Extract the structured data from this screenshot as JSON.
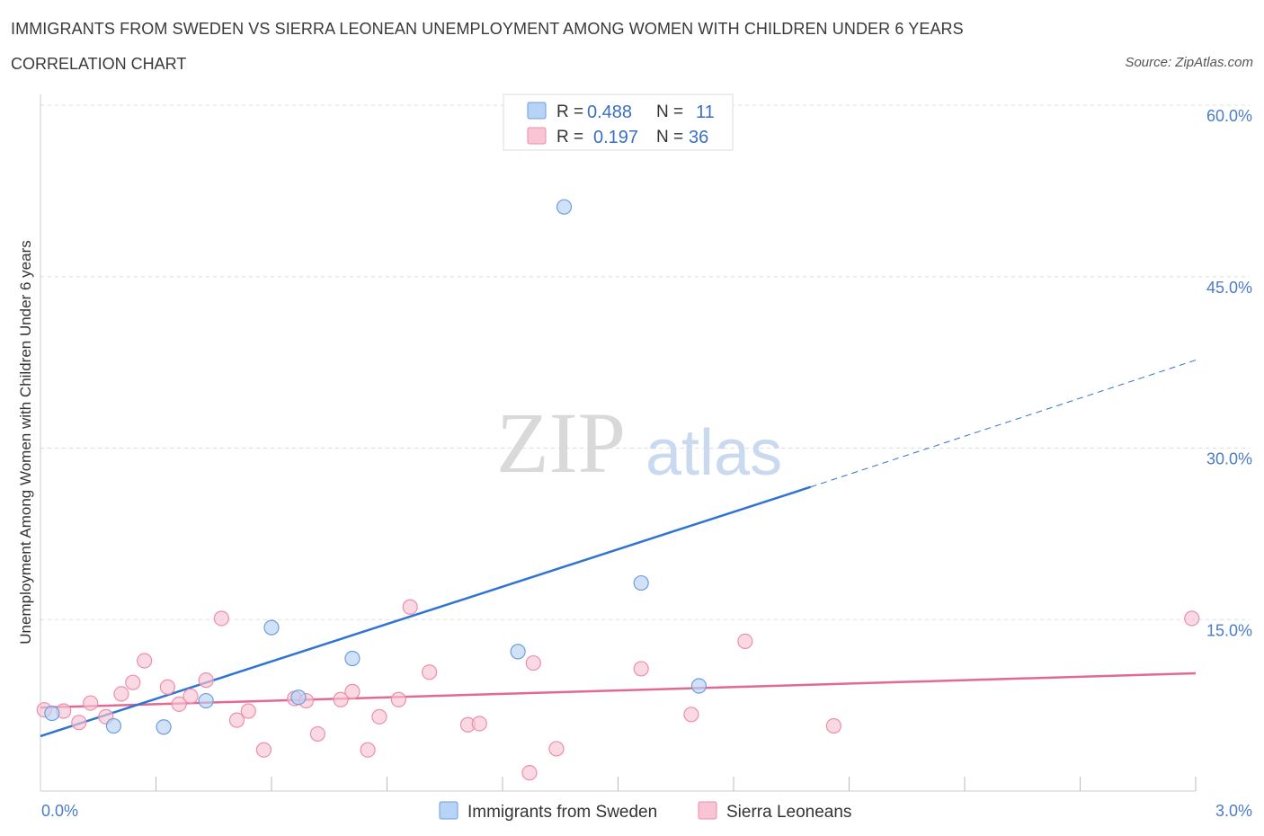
{
  "header": {
    "title": "IMMIGRANTS FROM SWEDEN VS SIERRA LEONEAN UNEMPLOYMENT AMONG WOMEN WITH CHILDREN UNDER 6 YEARS",
    "subtitle": "CORRELATION CHART",
    "source": "Source: ZipAtlas.com"
  },
  "watermark": {
    "zip": "ZIP",
    "atlas": "atlas"
  },
  "colors": {
    "sweden_fill": "#b8d3f5",
    "sweden_stroke": "#6d9ee0",
    "sweden_line": "#2f74d0",
    "sierra_fill": "#f9c5d4",
    "sierra_stroke": "#eb8fab",
    "sierra_line": "#e26994",
    "grid": "#dddddd",
    "axis_text": "#4a7cc8"
  },
  "legend_top": {
    "rows": [
      {
        "r_label": "R =",
        "r_value": "0.488",
        "n_label": "N =",
        "n_value": "11"
      },
      {
        "r_label": "R =",
        "r_value": "0.197",
        "n_label": "N =",
        "n_value": "36"
      }
    ]
  },
  "chart_data": {
    "type": "scatter",
    "title": "IMMIGRANTS FROM SWEDEN VS SIERRA LEONEAN UNEMPLOYMENT AMONG WOMEN WITH CHILDREN UNDER 6 YEARS",
    "xlabel": "",
    "ylabel": "Unemployment Among Women with Children Under 6 years",
    "xlim": [
      0,
      3.0
    ],
    "ylim": [
      0,
      60
    ],
    "x_tick_labels": [
      "0.0%",
      "3.0%"
    ],
    "x_tick_values": [
      0,
      3.0
    ],
    "y_tick_labels": [
      "15.0%",
      "30.0%",
      "45.0%",
      "60.0%"
    ],
    "y_tick_values": [
      15,
      30,
      45,
      60
    ],
    "grid": true,
    "legend_placement": "bottom-center",
    "series": [
      {
        "name": "Immigrants from Sweden",
        "points": [
          [
            0.03,
            6.8
          ],
          [
            0.19,
            5.7
          ],
          [
            0.32,
            5.6
          ],
          [
            0.43,
            7.9
          ],
          [
            0.6,
            14.3
          ],
          [
            0.67,
            8.2
          ],
          [
            0.81,
            11.6
          ],
          [
            1.24,
            12.2
          ],
          [
            1.36,
            51.1
          ],
          [
            1.56,
            18.2
          ],
          [
            1.71,
            9.2
          ]
        ],
        "trend": {
          "x": [
            0,
            2.0
          ],
          "y": [
            4.8,
            26.6
          ]
        },
        "trend_dashed": {
          "x": [
            2.0,
            3.0
          ],
          "y": [
            26.6,
            37.7
          ]
        }
      },
      {
        "name": "Sierra Leoneans",
        "points": [
          [
            0.01,
            7.1
          ],
          [
            0.06,
            7.0
          ],
          [
            0.1,
            6.0
          ],
          [
            0.13,
            7.7
          ],
          [
            0.17,
            6.5
          ],
          [
            0.21,
            8.5
          ],
          [
            0.24,
            9.5
          ],
          [
            0.27,
            11.4
          ],
          [
            0.33,
            9.1
          ],
          [
            0.36,
            7.6
          ],
          [
            0.39,
            8.3
          ],
          [
            0.43,
            9.7
          ],
          [
            0.47,
            15.1
          ],
          [
            0.51,
            6.2
          ],
          [
            0.54,
            7.0
          ],
          [
            0.58,
            3.6
          ],
          [
            0.66,
            8.1
          ],
          [
            0.69,
            7.9
          ],
          [
            0.72,
            5.0
          ],
          [
            0.78,
            8.0
          ],
          [
            0.81,
            8.7
          ],
          [
            0.85,
            3.6
          ],
          [
            0.88,
            6.5
          ],
          [
            0.93,
            8.0
          ],
          [
            0.96,
            16.1
          ],
          [
            1.01,
            10.4
          ],
          [
            1.11,
            5.8
          ],
          [
            1.14,
            5.9
          ],
          [
            1.27,
            1.6
          ],
          [
            1.28,
            11.2
          ],
          [
            1.34,
            3.7
          ],
          [
            1.56,
            10.7
          ],
          [
            1.69,
            6.7
          ],
          [
            1.83,
            13.1
          ],
          [
            2.06,
            5.7
          ],
          [
            2.99,
            15.1
          ]
        ],
        "trend": {
          "x": [
            0,
            3.0
          ],
          "y": [
            7.3,
            10.3
          ]
        }
      }
    ]
  }
}
